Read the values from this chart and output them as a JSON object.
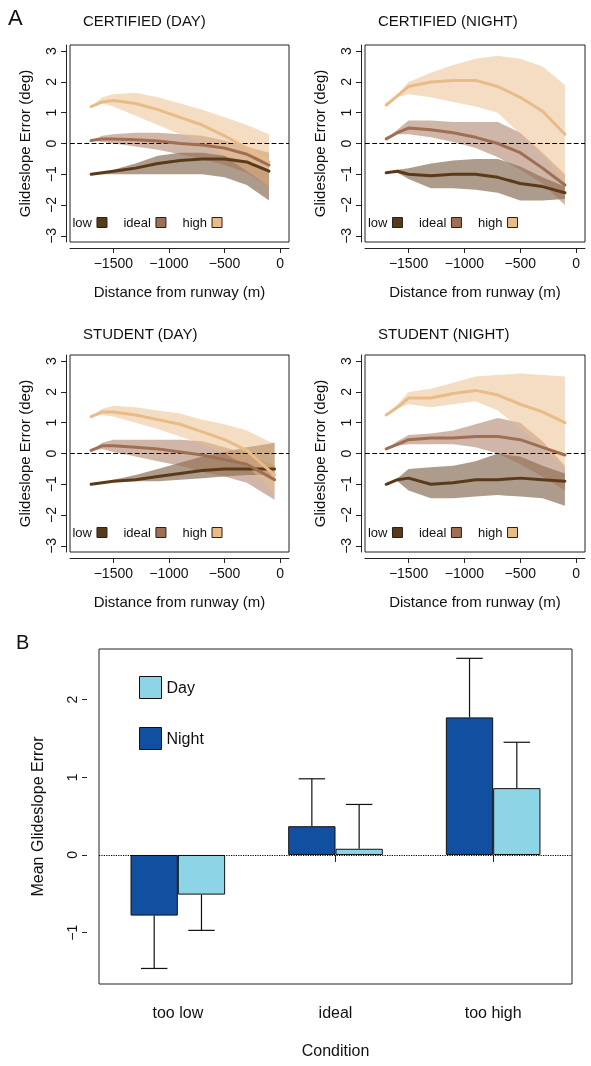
{
  "chart_data": [
    {
      "type": "line",
      "title": "CERTIFIED (DAY)",
      "xlabel": "Distance from runway (m)",
      "ylabel": "Glideslope Error (deg)",
      "annotations": [
        "A"
      ],
      "x": [
        -1700,
        -1600,
        -1500,
        -1300,
        -1100,
        -900,
        -700,
        -500,
        -300,
        -100
      ],
      "xlim": [
        -1890,
        80
      ],
      "xticks": [
        -1500,
        -1000,
        -500,
        0
      ],
      "ylim": [
        -3.2,
        3.2
      ],
      "yticks": [
        -3,
        -2,
        -1,
        0,
        1,
        2,
        3
      ],
      "legend": "bottom",
      "marker": "none",
      "ref_lines": [
        {
          "axis": "y",
          "value": 0,
          "color": "#000000",
          "line_style": "dashed"
        }
      ],
      "series": [
        {
          "name": "low",
          "color": "#5b3a1a",
          "values": [
            -1.0,
            -0.95,
            -0.9,
            -0.8,
            -0.65,
            -0.55,
            -0.5,
            -0.5,
            -0.6,
            -0.9
          ],
          "lower": [
            -1.0,
            -1.0,
            -1.0,
            -1.0,
            -1.0,
            -1.0,
            -1.0,
            -1.1,
            -1.35,
            -1.85
          ],
          "upper": [
            -1.0,
            -0.95,
            -0.85,
            -0.65,
            -0.4,
            -0.3,
            -0.3,
            -0.4,
            -0.6,
            -0.9
          ]
        },
        {
          "name": "ideal",
          "color": "#a06e52",
          "values": [
            0.1,
            0.15,
            0.15,
            0.12,
            0.08,
            0.0,
            -0.05,
            -0.15,
            -0.35,
            -0.7
          ],
          "lower": [
            0.1,
            0.05,
            0.0,
            -0.1,
            -0.2,
            -0.35,
            -0.5,
            -0.7,
            -0.95,
            -1.4
          ],
          "upper": [
            0.1,
            0.25,
            0.3,
            0.35,
            0.35,
            0.3,
            0.25,
            0.1,
            -0.1,
            -0.3
          ]
        },
        {
          "name": "high",
          "color": "#e9bc87",
          "values": [
            1.2,
            1.35,
            1.4,
            1.3,
            1.1,
            0.85,
            0.6,
            0.25,
            -0.15,
            -0.6
          ],
          "lower": [
            1.2,
            1.3,
            1.2,
            0.9,
            0.6,
            0.3,
            0.0,
            -0.4,
            -0.9,
            -1.4
          ],
          "upper": [
            1.2,
            1.5,
            1.6,
            1.65,
            1.5,
            1.3,
            1.1,
            0.85,
            0.6,
            0.3
          ]
        }
      ]
    },
    {
      "type": "line",
      "title": "CERTIFIED (NIGHT)",
      "xlabel": "Distance from runway (m)",
      "ylabel": "Glideslope Error (deg)",
      "x": [
        -1700,
        -1600,
        -1500,
        -1300,
        -1100,
        -900,
        -700,
        -500,
        -300,
        -100
      ],
      "xlim": [
        -1890,
        80
      ],
      "xticks": [
        -1500,
        -1000,
        -500,
        0
      ],
      "ylim": [
        -3.2,
        3.2
      ],
      "yticks": [
        -3,
        -2,
        -1,
        0,
        1,
        2,
        3
      ],
      "legend": "bottom",
      "marker": "none",
      "ref_lines": [
        {
          "axis": "y",
          "value": 0,
          "color": "#000000",
          "line_style": "dashed"
        }
      ],
      "series": [
        {
          "name": "low",
          "color": "#5b3a1a",
          "values": [
            -0.95,
            -0.9,
            -1.0,
            -1.05,
            -1.0,
            -1.0,
            -1.1,
            -1.3,
            -1.4,
            -1.6
          ],
          "lower": [
            -0.95,
            -0.95,
            -1.15,
            -1.45,
            -1.45,
            -1.5,
            -1.6,
            -1.85,
            -1.85,
            -1.8
          ],
          "upper": [
            -0.95,
            -0.85,
            -0.8,
            -0.65,
            -0.55,
            -0.5,
            -0.5,
            -0.75,
            -1.1,
            -1.4
          ]
        },
        {
          "name": "ideal",
          "color": "#a06e52",
          "values": [
            0.15,
            0.35,
            0.5,
            0.45,
            0.35,
            0.2,
            0.0,
            -0.3,
            -0.8,
            -1.35
          ],
          "lower": [
            0.15,
            0.3,
            0.3,
            0.2,
            0.05,
            -0.15,
            -0.45,
            -0.85,
            -1.3,
            -2.0
          ],
          "upper": [
            0.15,
            0.45,
            0.75,
            0.75,
            0.7,
            0.7,
            0.7,
            0.35,
            -0.3,
            -1.0
          ]
        },
        {
          "name": "high",
          "color": "#e9bc87",
          "values": [
            1.25,
            1.55,
            1.85,
            2.0,
            2.05,
            2.05,
            1.85,
            1.5,
            1.05,
            0.3
          ],
          "lower": [
            1.25,
            1.5,
            1.6,
            1.5,
            1.35,
            1.2,
            1.0,
            0.3,
            -0.4,
            -1.3
          ],
          "upper": [
            1.25,
            1.6,
            2.0,
            2.3,
            2.55,
            2.75,
            2.85,
            2.75,
            2.5,
            1.9
          ]
        }
      ]
    },
    {
      "type": "line",
      "title": "STUDENT (DAY)",
      "xlabel": "Distance from runway (m)",
      "ylabel": "Glideslope Error (deg)",
      "x": [
        -1700,
        -1600,
        -1500,
        -1300,
        -1100,
        -900,
        -700,
        -500,
        -300,
        -50
      ],
      "xlim": [
        -1890,
        80
      ],
      "xticks": [
        -1500,
        -1000,
        -500,
        0
      ],
      "ylim": [
        -3.2,
        3.2
      ],
      "yticks": [
        -3,
        -2,
        -1,
        0,
        1,
        2,
        3
      ],
      "legend": "bottom",
      "marker": "none",
      "ref_lines": [
        {
          "axis": "y",
          "value": 0,
          "color": "#000000",
          "line_style": "dashed"
        }
      ],
      "series": [
        {
          "name": "low",
          "color": "#5b3a1a",
          "values": [
            -1.0,
            -0.95,
            -0.9,
            -0.85,
            -0.75,
            -0.65,
            -0.55,
            -0.5,
            -0.5,
            -0.5
          ],
          "lower": [
            -1.0,
            -0.95,
            -0.9,
            -0.9,
            -0.9,
            -0.85,
            -0.8,
            -0.75,
            -0.7,
            -0.7
          ],
          "upper": [
            -1.0,
            -0.95,
            -0.85,
            -0.7,
            -0.5,
            -0.3,
            -0.1,
            0.05,
            0.2,
            0.35
          ]
        },
        {
          "name": "ideal",
          "color": "#a06e52",
          "values": [
            0.1,
            0.25,
            0.25,
            0.2,
            0.15,
            0.05,
            -0.05,
            -0.2,
            -0.35,
            -0.85
          ],
          "lower": [
            0.1,
            0.15,
            0.05,
            -0.1,
            -0.25,
            -0.4,
            -0.6,
            -0.75,
            -0.95,
            -1.5
          ],
          "upper": [
            0.1,
            0.35,
            0.45,
            0.45,
            0.45,
            0.45,
            0.4,
            0.2,
            0.0,
            -0.4
          ]
        },
        {
          "name": "high",
          "color": "#e9bc87",
          "values": [
            1.2,
            1.35,
            1.35,
            1.25,
            1.1,
            0.95,
            0.7,
            0.45,
            0.1,
            -0.7
          ],
          "lower": [
            1.2,
            1.25,
            1.2,
            1.0,
            0.8,
            0.55,
            0.3,
            0.0,
            -0.4,
            -1.3
          ],
          "upper": [
            1.2,
            1.45,
            1.55,
            1.5,
            1.4,
            1.3,
            1.1,
            0.95,
            0.75,
            0.3
          ]
        }
      ]
    },
    {
      "type": "line",
      "title": "STUDENT (NIGHT)",
      "xlabel": "Distance from runway (m)",
      "ylabel": "Glideslope Error (deg)",
      "x": [
        -1700,
        -1600,
        -1500,
        -1300,
        -1100,
        -900,
        -700,
        -500,
        -300,
        -100
      ],
      "xlim": [
        -1890,
        80
      ],
      "xticks": [
        -1500,
        -1000,
        -500,
        0
      ],
      "ylim": [
        -3.2,
        3.2
      ],
      "yticks": [
        -3,
        -2,
        -1,
        0,
        1,
        2,
        3
      ],
      "legend": "bottom",
      "marker": "none",
      "ref_lines": [
        {
          "axis": "y",
          "value": 0,
          "color": "#000000",
          "line_style": "dashed"
        }
      ],
      "series": [
        {
          "name": "low",
          "color": "#5b3a1a",
          "values": [
            -1.0,
            -0.85,
            -0.8,
            -1.0,
            -0.95,
            -0.85,
            -0.85,
            -0.8,
            -0.85,
            -0.9
          ],
          "lower": [
            -1.0,
            -0.9,
            -1.2,
            -1.45,
            -1.45,
            -1.4,
            -1.35,
            -1.4,
            -1.45,
            -1.7
          ],
          "upper": [
            -1.0,
            -0.8,
            -0.5,
            -0.45,
            -0.4,
            -0.25,
            0.0,
            -0.1,
            -0.4,
            -0.65
          ]
        },
        {
          "name": "ideal",
          "color": "#a06e52",
          "values": [
            0.15,
            0.3,
            0.45,
            0.5,
            0.5,
            0.55,
            0.55,
            0.45,
            0.2,
            -0.05
          ],
          "lower": [
            0.15,
            0.25,
            0.3,
            0.3,
            0.3,
            0.2,
            0.0,
            -0.35,
            -0.75,
            -1.2
          ],
          "upper": [
            0.15,
            0.4,
            0.6,
            0.65,
            0.75,
            0.95,
            1.15,
            1.0,
            0.4,
            -0.4
          ]
        },
        {
          "name": "high",
          "color": "#e9bc87",
          "values": [
            1.25,
            1.5,
            1.8,
            1.8,
            1.95,
            2.05,
            1.9,
            1.6,
            1.35,
            1.0
          ],
          "lower": [
            1.25,
            1.45,
            1.6,
            1.5,
            1.6,
            1.7,
            1.4,
            0.8,
            0.2,
            -0.5
          ],
          "upper": [
            1.25,
            1.6,
            2.0,
            2.1,
            2.3,
            2.5,
            2.55,
            2.6,
            2.55,
            2.5
          ]
        }
      ]
    },
    {
      "type": "bar",
      "xlabel": "Condition",
      "ylabel": "Mean Glideslope Error",
      "annotations": [
        "B"
      ],
      "categories": [
        "too low",
        "ideal",
        "too high"
      ],
      "ylim": [
        -1.66,
        2.65
      ],
      "yticks": [
        -1,
        0,
        1,
        2
      ],
      "legend": "top left",
      "ref_lines": [
        {
          "axis": "y",
          "value": 0,
          "color": "#000000",
          "line_style": "dotted"
        }
      ],
      "series": [
        {
          "name": "Night",
          "color": "#1150a0",
          "values": [
            -0.78,
            0.37,
            1.77
          ],
          "errors": [
            [
              -1.46,
              -0.78
            ],
            [
              0.37,
              0.98
            ],
            [
              1.77,
              2.53
            ]
          ]
        },
        {
          "name": "Day",
          "color": "#8dd5e6",
          "values": [
            -0.51,
            0.08,
            0.86
          ],
          "errors": [
            [
              -0.97,
              -0.51
            ],
            [
              0.08,
              0.65
            ],
            [
              0.86,
              1.45
            ]
          ]
        }
      ]
    }
  ]
}
